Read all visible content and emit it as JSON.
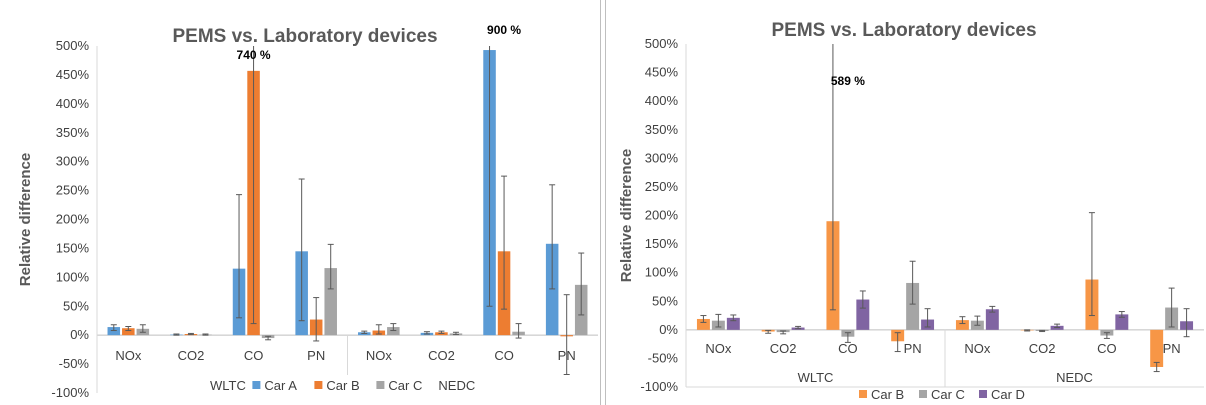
{
  "chart_data": [
    {
      "type": "bar",
      "title": "PEMS vs. Laboratory devices",
      "ylabel": "Relative difference",
      "xlabel": "",
      "ylim": [
        -100,
        500
      ],
      "yticks": [
        "-100%",
        "-50%",
        "0%",
        "50%",
        "100%",
        "150%",
        "200%",
        "250%",
        "300%",
        "350%",
        "400%",
        "450%",
        "500%"
      ],
      "groups": [
        "WLTC",
        "NEDC"
      ],
      "categories": [
        "NOx",
        "CO2",
        "CO",
        "PN",
        "NOx",
        "CO2",
        "CO",
        "PN"
      ],
      "legend_position": "bottom",
      "legend_labels": [
        "WLTC",
        "Car A",
        "Car B",
        "Car C",
        "NEDC"
      ],
      "series": [
        {
          "name": "Car A",
          "color": "#5b9bd5",
          "values": [
            14,
            1,
            115,
            145,
            5,
            4,
            493,
            158
          ],
          "errors": [
            [
              8,
              18
            ],
            [
              0,
              2
            ],
            [
              30,
              243
            ],
            [
              25,
              270
            ],
            [
              3,
              7
            ],
            [
              2,
              6
            ],
            [
              50,
              900
            ],
            [
              80,
              260
            ]
          ]
        },
        {
          "name": "Car B",
          "color": "#ed7d31",
          "values": [
            12,
            2,
            457,
            27,
            8,
            5,
            145,
            -2
          ],
          "errors": [
            [
              8,
              15
            ],
            [
              1,
              3
            ],
            [
              20,
              740
            ],
            [
              -10,
              65
            ],
            [
              2,
              18
            ],
            [
              3,
              7
            ],
            [
              45,
              275
            ],
            [
              -68,
              70
            ]
          ]
        },
        {
          "name": "Car C",
          "color": "#a5a5a5",
          "values": [
            11,
            1,
            -5,
            116,
            14,
            3,
            6,
            87
          ],
          "errors": [
            [
              5,
              18
            ],
            [
              0,
              2
            ],
            [
              -8,
              -2
            ],
            [
              80,
              157
            ],
            [
              8,
              20
            ],
            [
              1,
              5
            ],
            [
              -5,
              20
            ],
            [
              35,
              142
            ]
          ]
        }
      ],
      "annotations": [
        {
          "text": "740 %",
          "category_index": 2
        },
        {
          "text": "900 %",
          "category_index": 6
        }
      ]
    },
    {
      "type": "bar",
      "title": "PEMS vs. Laboratory devices",
      "ylabel": "Relative difference",
      "xlabel": "",
      "ylim": [
        -100,
        500
      ],
      "yticks": [
        "-100%",
        "-50%",
        "0%",
        "50%",
        "100%",
        "150%",
        "200%",
        "250%",
        "300%",
        "350%",
        "400%",
        "450%",
        "500%"
      ],
      "groups": [
        "WLTC",
        "NEDC"
      ],
      "categories": [
        "NOx",
        "CO2",
        "CO",
        "PN",
        "NOx",
        "CO2",
        "CO",
        "PN"
      ],
      "legend_position": "bottom",
      "legend_labels": [
        "Car B",
        "Car C",
        "Car D"
      ],
      "series": [
        {
          "name": "Car B",
          "color": "#f79646",
          "values": [
            19,
            -3,
            190,
            -20,
            17,
            -1,
            88,
            -65
          ],
          "errors": [
            [
              13,
              25
            ],
            [
              -6,
              -1
            ],
            [
              35,
              589
            ],
            [
              -38,
              -5
            ],
            [
              11,
              23
            ],
            [
              -2,
              0
            ],
            [
              25,
              205
            ],
            [
              -73,
              -57
            ]
          ]
        },
        {
          "name": "Car C",
          "color": "#a5a5a5",
          "values": [
            16,
            -4,
            -12,
            82,
            16,
            -2,
            -10,
            39
          ],
          "errors": [
            [
              5,
              27
            ],
            [
              -7,
              -2
            ],
            [
              -22,
              -5
            ],
            [
              45,
              120
            ],
            [
              8,
              24
            ],
            [
              -3,
              -1
            ],
            [
              -15,
              -5
            ],
            [
              5,
              73
            ]
          ]
        },
        {
          "name": "Car D",
          "color": "#8064a2",
          "values": [
            21,
            4,
            53,
            18,
            36,
            7,
            27,
            15
          ],
          "errors": [
            [
              16,
              26
            ],
            [
              2,
              6
            ],
            [
              38,
              68
            ],
            [
              5,
              37
            ],
            [
              31,
              41
            ],
            [
              4,
              10
            ],
            [
              22,
              32
            ],
            [
              -12,
              37
            ]
          ]
        }
      ],
      "annotations": [
        {
          "text": "589 %",
          "category_index": 2
        }
      ]
    }
  ]
}
